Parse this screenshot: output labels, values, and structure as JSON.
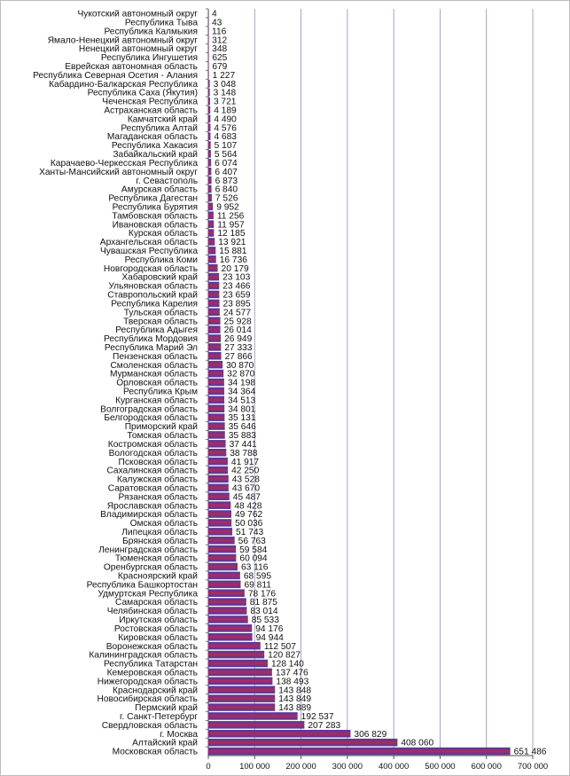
{
  "chart_data": {
    "type": "bar",
    "orientation": "horizontal",
    "title": "",
    "xlabel": "",
    "ylabel": "",
    "xlim": [
      0,
      700000
    ],
    "x_ticks": [
      0,
      100000,
      200000,
      300000,
      400000,
      500000,
      600000,
      700000
    ],
    "x_tick_labels": [
      "0",
      "100 000",
      "200 000",
      "300 000",
      "400 000",
      "500 000",
      "600 000",
      "700 000"
    ],
    "grid": "vertical",
    "legend": "none",
    "bar_color": "#b02a5a",
    "bar_highlight_color": "#4a3aa8",
    "plot_background": "#ffffff",
    "gridline_color": "#8e8ebf",
    "categories": [
      "Чукотский автономный округ",
      "Республика Тыва",
      "Республика Калмыкия",
      "Ямало-Ненецкий автономный округ",
      "Ненецкий автономный округ",
      "Республика Ингушетия",
      "Еврейская автономная область",
      "Республика Северная Осетия - Алания",
      "Кабардино-Балкарская Республика",
      "Республика Саха (Якутия)",
      "Чеченская Республика",
      "Астраханская область",
      "Камчатский край",
      "Республика Алтай",
      "Магаданская область",
      "Республика Хакасия",
      "Забайкальский край",
      "Карачаево-Черкесская Республика",
      "Ханты-Мансийский автономный округ",
      "г. Севастополь",
      "Амурская область",
      "Республика Дагестан",
      "Республика Бурятия",
      "Тамбовская область",
      "Ивановская область",
      "Курская область",
      "Архангельская область",
      "Чувашская Республика",
      "Республика Коми",
      "Новгородская область",
      "Хабаровский край",
      "Ульяновская область",
      "Ставропольский край",
      "Республика Карелия",
      "Тульская область",
      "Тверская область",
      "Республика Адыгея",
      "Республика Мордовия",
      "Республика Марий Эл",
      "Пензенская область",
      "Смоленская область",
      "Мурманская область",
      "Орловская область",
      "Республика Крым",
      "Курганская область",
      "Волгоградская область",
      "Белгородская область",
      "Приморский край",
      "Томская область",
      "Костромская область",
      "Вологодская область",
      "Псковская область",
      "Сахалинская область",
      "Калужская область",
      "Саратовская область",
      "Рязанская область",
      "Ярославская область",
      "Владимирская область",
      "Омская область",
      "Липецкая область",
      "Брянская область",
      "Ленинградская область",
      "Тюменская область",
      "Оренбургская область",
      "Красноярский край",
      "Республика Башкортостан",
      "Удмуртская Республика",
      "Самарская область",
      "Челябинская область",
      "Иркутская область",
      "Ростовская область",
      "Кировская область",
      "Воронежская область",
      "Калининградская область",
      "Республика Татарстан",
      "Кемеровская область",
      "Нижегородская область",
      "Краснодарский край",
      "Новосибирская область",
      "Пермский край",
      "г. Санкт-Петербург",
      "Свердловская область",
      "г. Москва",
      "Алтайский край",
      "Московская область"
    ],
    "values": [
      4,
      43,
      116,
      312,
      348,
      625,
      679,
      1227,
      3048,
      3148,
      3721,
      4189,
      4490,
      4576,
      4683,
      5107,
      5564,
      6074,
      6407,
      6873,
      6840,
      7526,
      9952,
      11256,
      11957,
      12185,
      13921,
      15881,
      16736,
      20179,
      23103,
      23466,
      23659,
      23895,
      24577,
      25928,
      26014,
      26949,
      27333,
      27866,
      30870,
      32870,
      34198,
      34364,
      34513,
      34801,
      35131,
      35646,
      35883,
      37441,
      38788,
      41917,
      42250,
      43528,
      43670,
      45487,
      48428,
      49762,
      50036,
      51743,
      56763,
      59584,
      60094,
      63116,
      68595,
      69811,
      78176,
      81875,
      83014,
      85533,
      94176,
      94944,
      112507,
      120827,
      128140,
      137476,
      138493,
      143848,
      143849,
      143889,
      192537,
      207283,
      306829,
      408060,
      651486
    ],
    "value_labels": [
      "4",
      "43",
      "116",
      "312",
      "348",
      "625",
      "679",
      "1 227",
      "3 048",
      "3 148",
      "3 721",
      "4 189",
      "4 490",
      "4 576",
      "4 683",
      "5 107",
      "5 564",
      "6 074",
      "6 407",
      "6 873",
      "6 840",
      "7 526",
      "9 952",
      "11 256",
      "11 957",
      "12 185",
      "13 921",
      "15 881",
      "16 736",
      "20 179",
      "23 103",
      "23 466",
      "23 659",
      "23 895",
      "24 577",
      "25 928",
      "26 014",
      "26 949",
      "27 333",
      "27 866",
      "30 870",
      "32 870",
      "34 198",
      "34 364",
      "34 513",
      "34 801",
      "35 131",
      "35 646",
      "35 883",
      "37 441",
      "38 788",
      "41 917",
      "42 250",
      "43 528",
      "43 670",
      "45 487",
      "48 428",
      "49 762",
      "50 036",
      "51 743",
      "56 763",
      "59 584",
      "60 094",
      "63 116",
      "68 595",
      "69 811",
      "78 176",
      "81 875",
      "83 014",
      "85 533",
      "94 176",
      "94 944",
      "112 507",
      "120 827",
      "128 140",
      "137 476",
      "138 493",
      "143 848",
      "143 849",
      "143 889",
      "192 537",
      "207 283",
      "306 829",
      "408 060",
      "651 486"
    ]
  }
}
